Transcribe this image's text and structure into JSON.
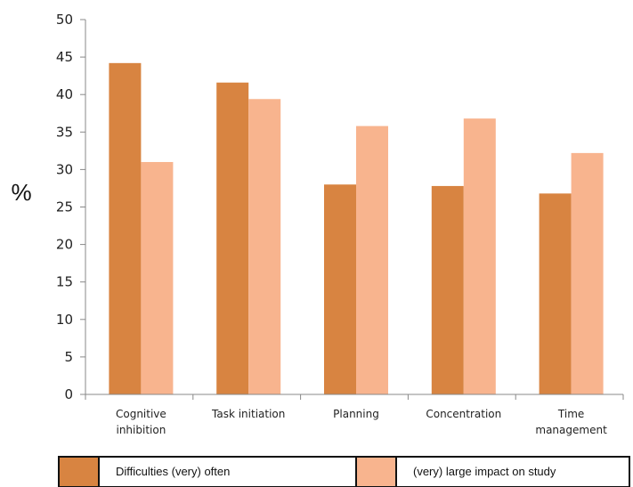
{
  "chart_data": {
    "type": "bar",
    "categories": [
      [
        "Cognitive",
        "inhibition"
      ],
      [
        "Task initiation"
      ],
      [
        "Planning"
      ],
      [
        "Concentration"
      ],
      [
        "Time",
        "management"
      ]
    ],
    "series": [
      {
        "name": "Difficulties (very) often",
        "color": "#d88441",
        "values": [
          44.2,
          41.6,
          28.0,
          27.8,
          26.8
        ]
      },
      {
        "name": "(very) large impact on study",
        "color": "#f8b48e",
        "values": [
          31.0,
          39.4,
          35.8,
          36.8,
          32.2
        ]
      }
    ],
    "ylabel": "%",
    "ylim": [
      0,
      50
    ],
    "yticks": [
      "0",
      "5",
      "10",
      "15",
      "20",
      "25",
      "30",
      "35",
      "40",
      "45",
      "50"
    ],
    "grid": false,
    "legend_position": "bottom"
  }
}
